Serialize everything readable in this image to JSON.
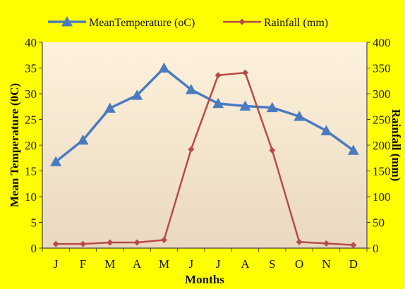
{
  "chart_data": {
    "type": "line",
    "categories": [
      "J",
      "F",
      "M",
      "A",
      "M",
      "J",
      "J",
      "A",
      "S",
      "O",
      "N",
      "D"
    ],
    "xlabel": "Months",
    "series": [
      {
        "name": "MeanTemperature (oC)",
        "axis": "left",
        "color": "#4a7bc0",
        "marker": "triangle",
        "values": [
          16.8,
          21.0,
          27.2,
          29.7,
          35.0,
          30.8,
          28.1,
          27.6,
          27.3,
          25.6,
          22.8,
          19.0
        ]
      },
      {
        "name": "Rainfall (mm)",
        "axis": "right",
        "color": "#b94a48",
        "marker": "diamond",
        "values": [
          8,
          8,
          11,
          11,
          16,
          192,
          336,
          341,
          190,
          12,
          9,
          6
        ]
      }
    ],
    "y_left": {
      "label": "Mean Temperature  (0C)",
      "ylim": [
        0,
        40
      ],
      "ticks": [
        0,
        5,
        10,
        15,
        20,
        25,
        30,
        35,
        40
      ]
    },
    "y_right": {
      "label": "Rainfall (mm)",
      "ylim": [
        0,
        400
      ],
      "ticks": [
        0,
        50,
        100,
        150,
        200,
        250,
        300,
        350,
        400
      ]
    },
    "grid": false,
    "legend_placement": "top",
    "colors": {
      "frame": "#ffff00",
      "plot_top": "#fdf2dc",
      "plot_bottom": "#ead8c0",
      "axis": "#444444"
    }
  }
}
